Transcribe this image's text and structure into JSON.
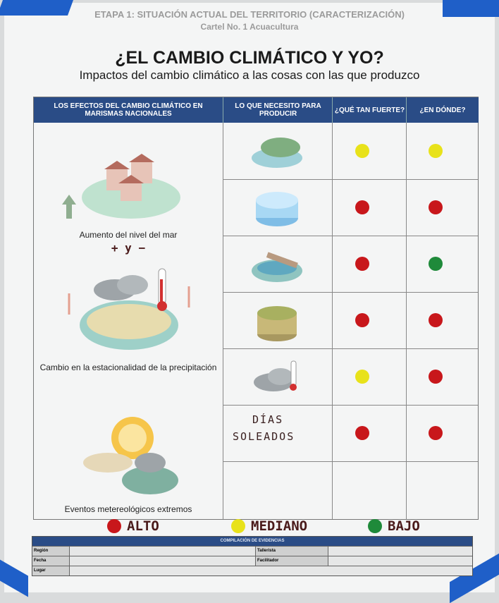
{
  "header": {
    "etapa": "ETAPA 1: SITUACIÓN ACTUAL DEL TERRITORIO (CARACTERIZACIÓN)",
    "cartel": "Cartel No. 1 Acuacultura",
    "title": "¿EL CAMBIO CLIMÁTICO Y YO?",
    "subtitle": "Impactos del cambio climático a las cosas con las que produzco"
  },
  "table": {
    "columns": [
      "LOS EFECTOS DEL CAMBIO CLIMÁTICO EN MARISMAS NACIONALES",
      "LO QUE NECESITO PARA PRODUCIR",
      "¿QUÉ TAN FUERTE?",
      "¿EN DÓNDE?"
    ],
    "effects": [
      {
        "label": "Aumento del nivel del mar",
        "note": "+ y −",
        "icon": "houses-flood-icon"
      },
      {
        "label": "Cambio en la estacionalidad de la precipitación",
        "icon": "rain-thermometer-icon"
      },
      {
        "label": "Eventos metereológicos extremos",
        "icon": "sun-storm-icon"
      }
    ],
    "rows": [
      {
        "need_icon": "mangrove-island-icon",
        "strength": "yellow",
        "where": "yellow"
      },
      {
        "need_icon": "water-icon",
        "strength": "red",
        "where": "red"
      },
      {
        "need_icon": "pond-channel-icon",
        "strength": "red",
        "where": "green"
      },
      {
        "need_icon": "soil-icon",
        "strength": "red",
        "where": "red"
      },
      {
        "need_icon": "cloud-thermometer-icon",
        "strength": "yellow",
        "where": "red"
      },
      {
        "need_text": [
          "DÍAS",
          "SOLEADOS"
        ],
        "strength": "red",
        "where": "red"
      },
      {
        "strength": null,
        "where": null
      }
    ]
  },
  "legend": [
    {
      "label": "ALTO",
      "color": "#c8171b"
    },
    {
      "label": "MEDIANO",
      "color": "#e8e21a"
    },
    {
      "label": "BAJO",
      "color": "#1f8a3a"
    }
  ],
  "colors": {
    "red": "#c8171b",
    "yellow": "#e8e21a",
    "green": "#1f8a3a",
    "header": "#2a4c86",
    "tape": "#1f5fc8"
  },
  "evidence": {
    "title": "COMPILACIÓN DE EVIDENCIAS",
    "fields": [
      "Región",
      "Fecha",
      "Lugar",
      "Tallerista",
      "Facilitador"
    ]
  }
}
